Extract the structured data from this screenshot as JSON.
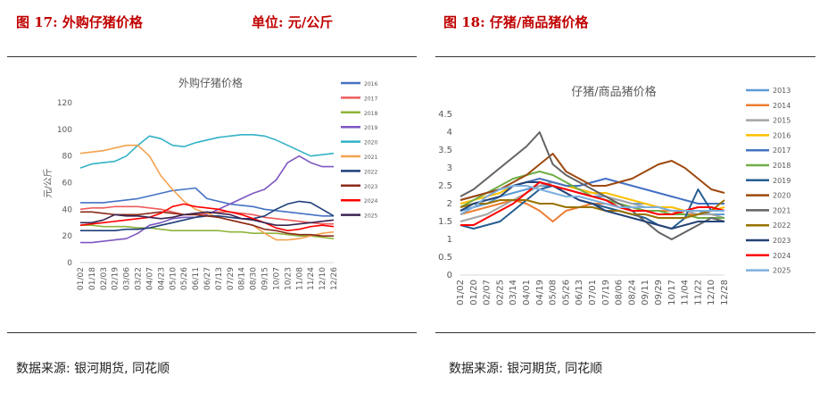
{
  "left": {
    "figure_title": "图 17:  外购仔猪价格",
    "unit_label": "单位:  元/公斤",
    "source": "数据来源:  银河期货,  同花顺",
    "chart_data": {
      "type": "line",
      "title": "外购仔猪价格",
      "ylabel": "元/公斤",
      "ylim": [
        0,
        120
      ],
      "yticks": [
        0,
        20,
        40,
        60,
        80,
        100,
        120
      ],
      "x_tick_labels": [
        "01/02",
        "01/18",
        "02/03",
        "02/19",
        "03/06",
        "03/22",
        "04/07",
        "04/23",
        "05/10",
        "05/26",
        "06/11",
        "06/27",
        "07/13",
        "07/29",
        "08/14",
        "08/30",
        "09/15",
        "10/07",
        "10/23",
        "11/08",
        "11/24",
        "12/10",
        "12/26"
      ],
      "legend_position": "right",
      "series": [
        {
          "name": "2016",
          "color": "#4472c4",
          "values": [
            45,
            45,
            45,
            46,
            47,
            48,
            50,
            52,
            54,
            55,
            56,
            48,
            46,
            44,
            43,
            42,
            40,
            39,
            38,
            37,
            36,
            35,
            35
          ]
        },
        {
          "name": "2017",
          "color": "#ed5c5c",
          "values": [
            40,
            41,
            41,
            42,
            42,
            42,
            41,
            40,
            38,
            36,
            36,
            37,
            38,
            38,
            37,
            36,
            34,
            33,
            32,
            31,
            30,
            29,
            29
          ]
        },
        {
          "name": "2018",
          "color": "#8fb43b",
          "values": [
            28,
            28,
            27,
            27,
            27,
            26,
            26,
            25,
            24,
            24,
            24,
            24,
            24,
            23,
            23,
            22,
            22,
            22,
            21,
            20,
            20,
            19,
            18
          ]
        },
        {
          "name": "2019",
          "color": "#7e57c2",
          "values": [
            15,
            15,
            16,
            17,
            18,
            22,
            28,
            30,
            33,
            34,
            34,
            36,
            40,
            44,
            48,
            52,
            55,
            62,
            75,
            80,
            75,
            72,
            72
          ]
        },
        {
          "name": "2020",
          "color": "#33b2c6",
          "values": [
            71,
            74,
            75,
            76,
            80,
            88,
            95,
            93,
            88,
            87,
            90,
            92,
            94,
            95,
            96,
            96,
            95,
            92,
            88,
            84,
            80,
            81,
            82
          ]
        },
        {
          "name": "2021",
          "color": "#f4a24e",
          "values": [
            82,
            83,
            84,
            86,
            88,
            88,
            80,
            65,
            55,
            46,
            40,
            37,
            34,
            32,
            30,
            28,
            22,
            17,
            17,
            18,
            20,
            22,
            23
          ]
        },
        {
          "name": "2022",
          "color": "#1f3f7a",
          "values": [
            24,
            24,
            24,
            24,
            25,
            25,
            26,
            28,
            30,
            32,
            34,
            35,
            35,
            34,
            33,
            33,
            35,
            40,
            44,
            46,
            45,
            40,
            35
          ]
        },
        {
          "name": "2023",
          "color": "#8b2b1a",
          "values": [
            38,
            38,
            37,
            36,
            36,
            36,
            37,
            38,
            37,
            36,
            36,
            35,
            34,
            32,
            30,
            28,
            25,
            24,
            22,
            21,
            21,
            20,
            20
          ]
        },
        {
          "name": "2024",
          "color": "#ff0000",
          "values": [
            28,
            29,
            30,
            31,
            32,
            33,
            34,
            37,
            42,
            44,
            42,
            41,
            40,
            38,
            36,
            33,
            30,
            26,
            24,
            25,
            27,
            28,
            27
          ]
        },
        {
          "name": "2025",
          "color": "#3a2450",
          "values": [
            30,
            30,
            32,
            36,
            35,
            35,
            34,
            33,
            34,
            36,
            37,
            38,
            37,
            36,
            33,
            32,
            30,
            28,
            28,
            29,
            30,
            31,
            32
          ]
        }
      ]
    }
  },
  "right": {
    "figure_title": "图 18:  仔猪/商品猪价格",
    "source": "数据来源:  银河期货,  同花顺",
    "chart_data": {
      "type": "line",
      "title": "仔猪/商品猪价格",
      "ylim": [
        0,
        4.5
      ],
      "yticks": [
        0,
        0.5,
        1,
        1.5,
        2,
        2.5,
        3,
        3.5,
        4,
        4.5
      ],
      "x_tick_labels": [
        "01/02",
        "01/20",
        "02/07",
        "02/25",
        "03/14",
        "04/01",
        "04/19",
        "05/08",
        "05/26",
        "06/13",
        "07/01",
        "07/19",
        "08/06",
        "08/24",
        "09/11",
        "09/29",
        "10/17",
        "11/04",
        "11/22",
        "12/10",
        "12/28"
      ],
      "legend_position": "right",
      "series": [
        {
          "name": "2013",
          "color": "#5b9bd5",
          "values": [
            1.8,
            1.9,
            2.0,
            2.2,
            2.3,
            2.4,
            2.5,
            2.5,
            2.4,
            2.3,
            2.2,
            2.2,
            2.1,
            2.0,
            2.0,
            1.9,
            1.9,
            1.8,
            1.8,
            1.7,
            1.7
          ]
        },
        {
          "name": "2014",
          "color": "#ed7d31",
          "values": [
            1.7,
            1.8,
            1.9,
            2.0,
            2.1,
            2.0,
            1.8,
            1.5,
            1.8,
            1.9,
            2.0,
            2.0,
            1.9,
            1.9,
            1.8,
            1.8,
            1.8,
            1.7,
            1.7,
            1.8,
            1.8
          ]
        },
        {
          "name": "2015",
          "color": "#a5a5a5",
          "values": [
            1.5,
            1.6,
            1.7,
            1.9,
            2.1,
            2.3,
            2.5,
            2.6,
            2.5,
            2.4,
            2.3,
            2.2,
            2.1,
            2.0,
            1.9,
            1.9,
            1.8,
            1.8,
            1.7,
            1.7,
            1.6
          ]
        },
        {
          "name": "2016",
          "color": "#ffc000",
          "values": [
            2.0,
            2.1,
            2.2,
            2.3,
            2.5,
            2.6,
            2.7,
            2.6,
            2.5,
            2.4,
            2.3,
            2.3,
            2.2,
            2.1,
            2.0,
            1.9,
            1.9,
            1.8,
            1.8,
            1.8,
            1.9
          ]
        },
        {
          "name": "2017",
          "color": "#4472c4",
          "values": [
            2.1,
            2.2,
            2.3,
            2.4,
            2.5,
            2.6,
            2.7,
            2.6,
            2.5,
            2.5,
            2.6,
            2.7,
            2.6,
            2.5,
            2.4,
            2.3,
            2.2,
            2.1,
            2.0,
            2.0,
            2.0
          ]
        },
        {
          "name": "2018",
          "color": "#70ad47",
          "values": [
            1.9,
            2.1,
            2.3,
            2.5,
            2.7,
            2.8,
            2.9,
            2.8,
            2.6,
            2.4,
            2.2,
            2.1,
            2.0,
            1.9,
            1.8,
            1.8,
            1.7,
            1.7,
            1.6,
            1.6,
            1.6
          ]
        },
        {
          "name": "2019",
          "color": "#255e91",
          "values": [
            1.4,
            1.3,
            1.4,
            1.5,
            1.8,
            2.1,
            2.4,
            2.5,
            2.3,
            2.1,
            2.0,
            1.9,
            1.8,
            1.7,
            1.6,
            1.4,
            1.3,
            1.6,
            2.4,
            1.8,
            1.8
          ]
        },
        {
          "name": "2020",
          "color": "#9e480e",
          "values": [
            2.1,
            2.2,
            2.3,
            2.4,
            2.6,
            2.8,
            3.1,
            3.4,
            2.9,
            2.7,
            2.5,
            2.5,
            2.6,
            2.7,
            2.9,
            3.1,
            3.2,
            3.0,
            2.7,
            2.4,
            2.3
          ]
        },
        {
          "name": "2021",
          "color": "#636363",
          "values": [
            2.2,
            2.4,
            2.7,
            3.0,
            3.3,
            3.6,
            4.0,
            3.1,
            2.8,
            2.6,
            2.4,
            2.2,
            2.0,
            1.8,
            1.5,
            1.2,
            1.0,
            1.2,
            1.4,
            1.6,
            1.5
          ]
        },
        {
          "name": "2022",
          "color": "#997300",
          "values": [
            1.9,
            2.0,
            2.0,
            2.1,
            2.1,
            2.1,
            2.0,
            2.0,
            1.9,
            1.9,
            1.9,
            1.8,
            1.8,
            1.7,
            1.7,
            1.6,
            1.6,
            1.6,
            1.7,
            1.8,
            2.1
          ]
        },
        {
          "name": "2023",
          "color": "#264478",
          "values": [
            1.8,
            2.0,
            2.1,
            2.2,
            2.5,
            2.6,
            2.6,
            2.5,
            2.3,
            2.1,
            2.0,
            1.8,
            1.7,
            1.6,
            1.5,
            1.4,
            1.3,
            1.4,
            1.5,
            1.5,
            1.5
          ]
        },
        {
          "name": "2024",
          "color": "#ff0000",
          "values": [
            1.4,
            1.4,
            1.6,
            1.8,
            2.0,
            2.3,
            2.6,
            2.5,
            2.4,
            2.3,
            2.2,
            2.1,
            1.9,
            1.8,
            1.8,
            1.7,
            1.7,
            1.8,
            1.9,
            1.9,
            1.8
          ]
        },
        {
          "name": "2025",
          "color": "#7cafdd",
          "values": [
            1.7,
            1.9,
            2.2,
            2.4,
            2.5,
            2.5,
            2.4,
            2.3,
            2.2,
            2.2,
            2.1,
            2.0,
            1.9,
            1.9,
            1.9,
            1.9,
            1.8,
            1.8,
            1.8,
            1.8,
            1.8
          ]
        }
      ]
    }
  }
}
